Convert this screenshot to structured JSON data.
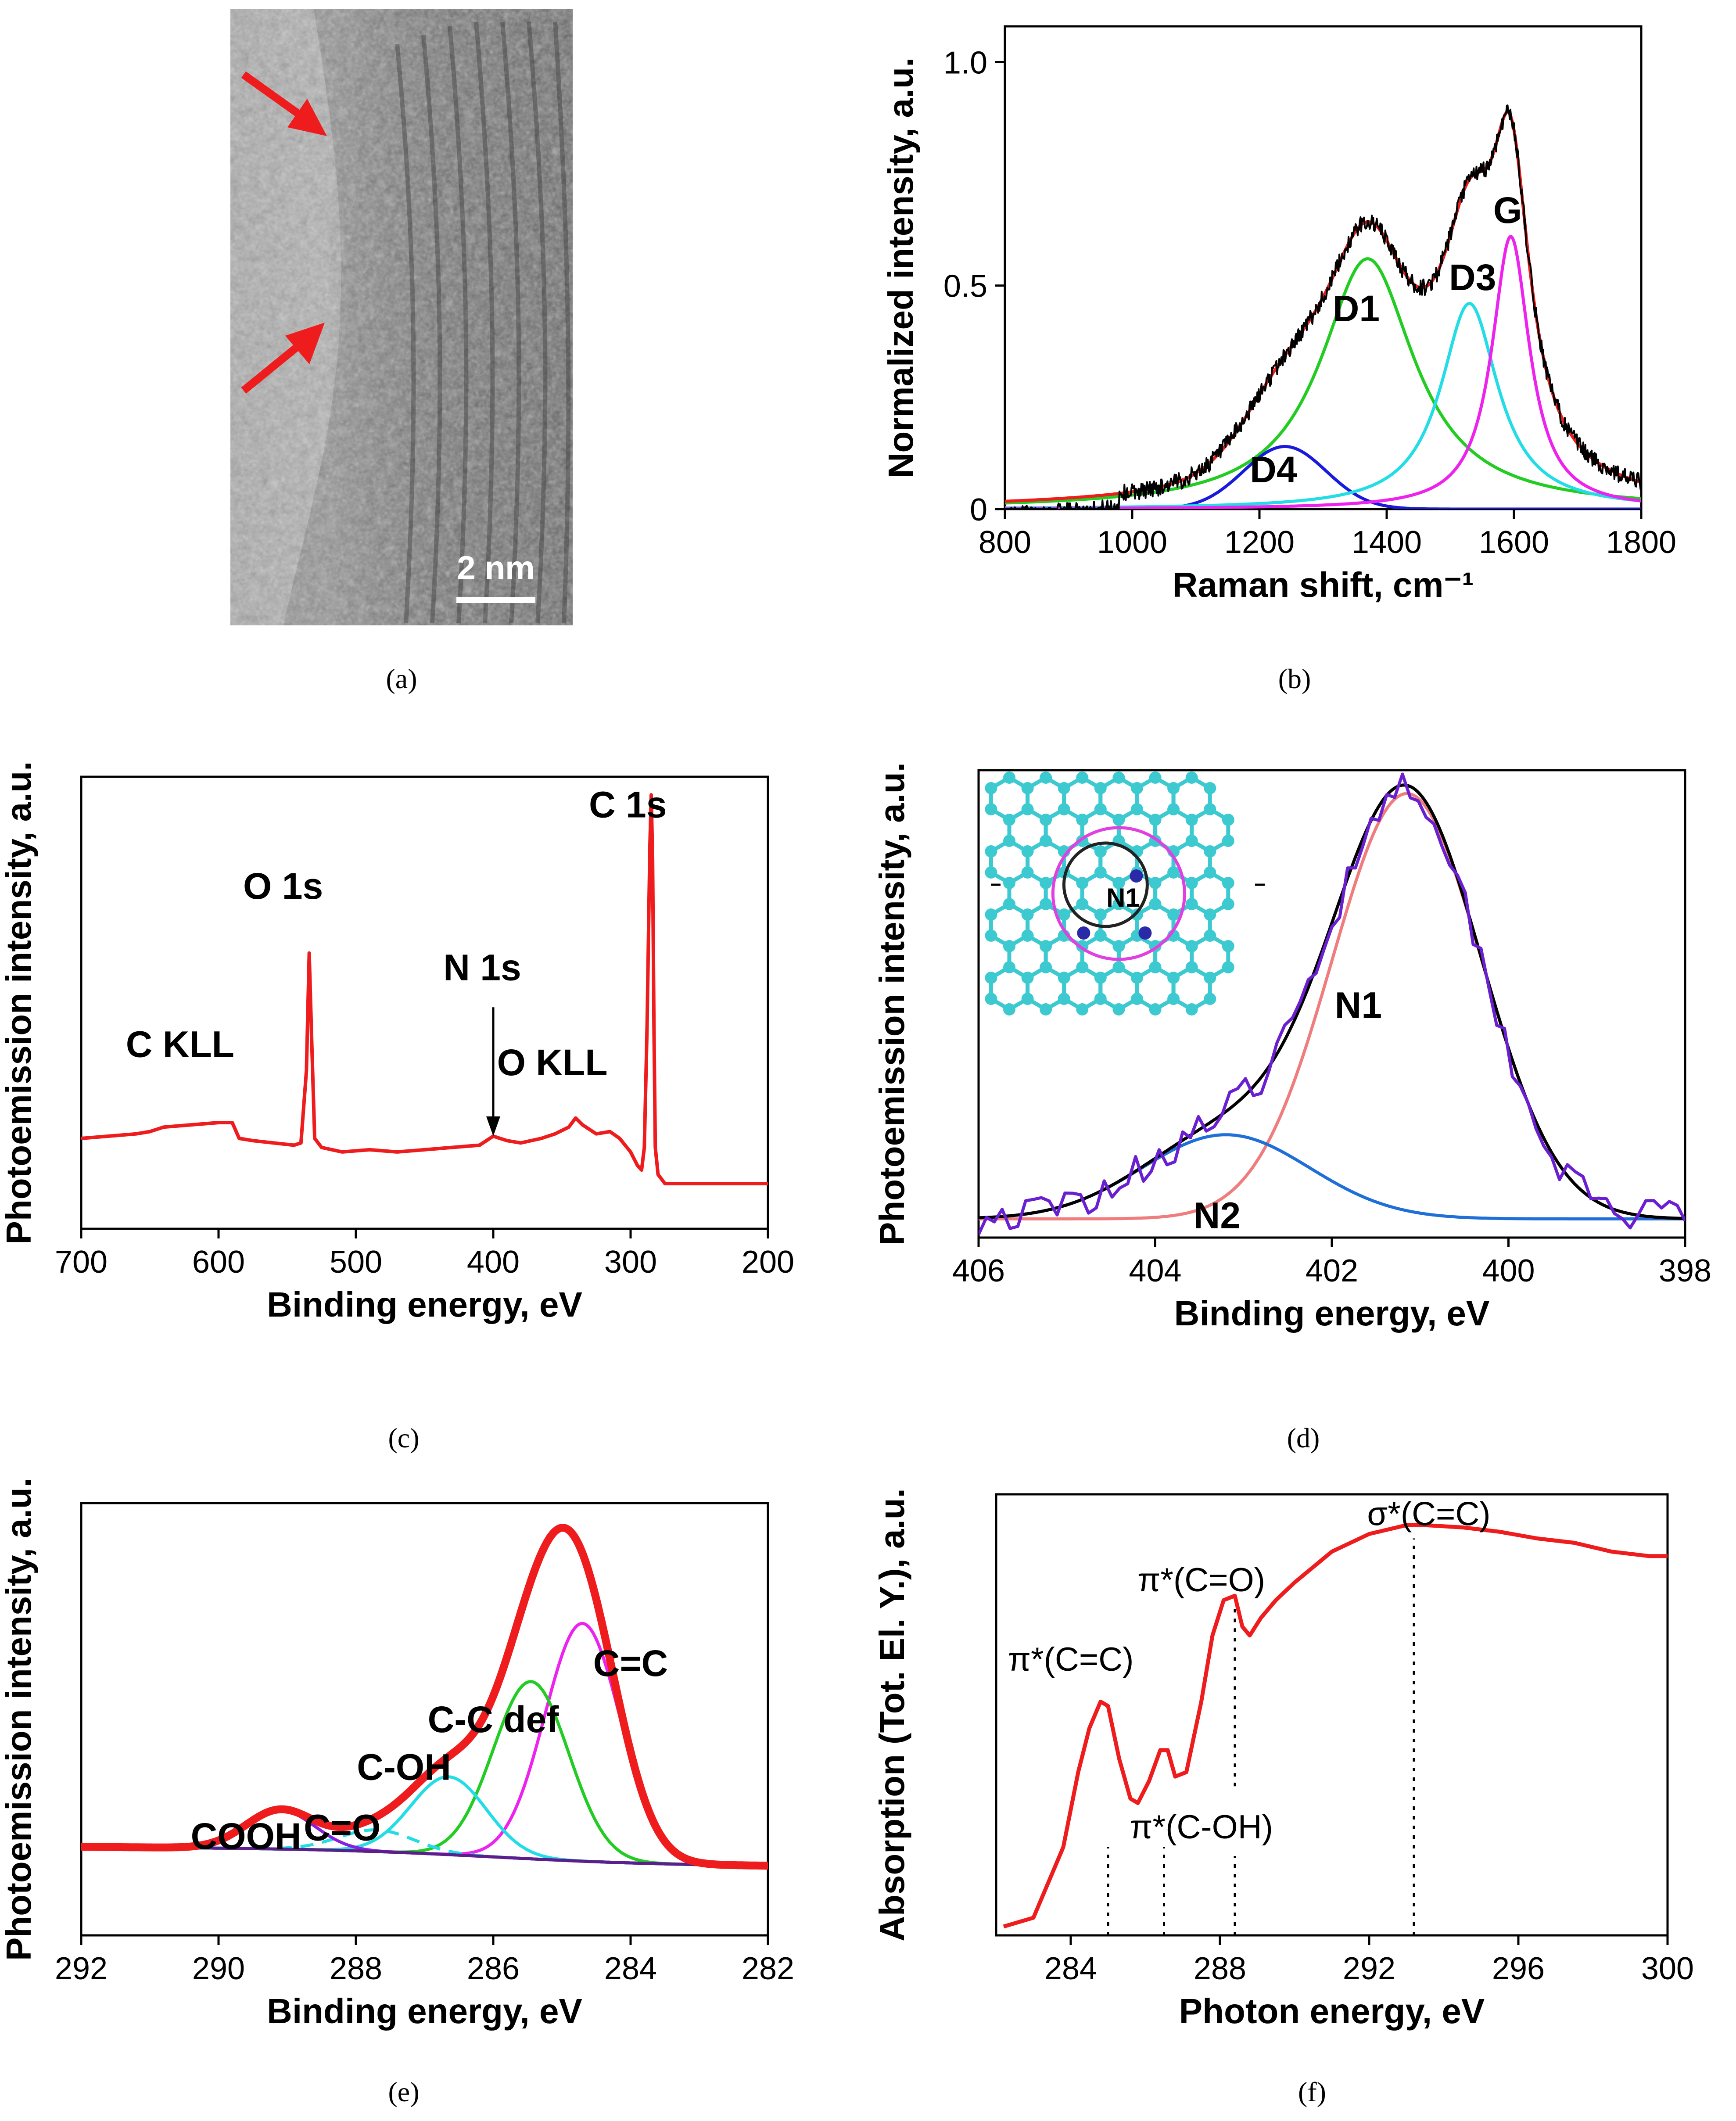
{
  "panels": {
    "a": {
      "caption": "(a)",
      "scale_bar_label": "2 nm",
      "colors": {
        "arrow": "#ee1c1c"
      }
    },
    "b": {
      "caption": "(b)"
    },
    "c": {
      "caption": "(c)"
    },
    "d": {
      "caption": "(d)",
      "inset_label": "N1"
    },
    "e": {
      "caption": "(e)"
    },
    "f": {
      "caption": "(f)"
    }
  },
  "chart_data": [
    {
      "id": "b",
      "type": "line",
      "xlabel": "Raman shift, cm⁻¹",
      "ylabel": "Normalized intensity, a.u.",
      "xlim": [
        800,
        1800
      ],
      "ylim": [
        0,
        1.08
      ],
      "xticks": [
        800,
        1000,
        1200,
        1400,
        1600,
        1800
      ],
      "yticks": [
        0,
        0.5,
        1.0
      ],
      "ytick_labels": [
        "0",
        "0.5",
        "1.0"
      ],
      "annotations": [
        {
          "text": "G",
          "x": 1590,
          "y": 0.64
        },
        {
          "text": "D3",
          "x": 1535,
          "y": 0.49
        },
        {
          "text": "D1",
          "x": 1352,
          "y": 0.42
        },
        {
          "text": "D4",
          "x": 1222,
          "y": 0.06
        }
      ],
      "series": [
        {
          "name": "D1",
          "shape": "lorentz",
          "center": 1370,
          "amplitude": 0.56,
          "hwhm": 90,
          "color": "#22cc22"
        },
        {
          "name": "D4",
          "shape": "gauss",
          "center": 1240,
          "amplitude": 0.14,
          "sigma": 65,
          "color": "#1a1adb"
        },
        {
          "name": "D3",
          "shape": "lorentz",
          "center": 1530,
          "amplitude": 0.46,
          "hwhm": 55,
          "color": "#22dde6"
        },
        {
          "name": "G",
          "shape": "lorentz",
          "center": 1595,
          "amplitude": 0.61,
          "hwhm": 36,
          "color": "#ee22ee"
        },
        {
          "name": "fit",
          "shape": "sum",
          "color": "#ee1c1c"
        },
        {
          "name": "data",
          "shape": "noisy-sum",
          "color": "#000000",
          "noise": 0.012
        }
      ]
    },
    {
      "id": "c",
      "type": "line",
      "xlabel": "Binding energy, eV",
      "ylabel": "Photoemission intensity, a.u.",
      "xlim": [
        700,
        200
      ],
      "ylim": [
        0,
        1
      ],
      "xticks": [
        700,
        600,
        500,
        400,
        300,
        200
      ],
      "annotations": [
        {
          "text": "C 1s",
          "x": 302,
          "y": 0.91
        },
        {
          "text": "O 1s",
          "x": 553,
          "y": 0.73
        },
        {
          "text": "N 1s",
          "x": 408,
          "y": 0.55
        },
        {
          "text": "C KLL",
          "x": 628,
          "y": 0.38
        },
        {
          "text": "O KLL",
          "x": 357,
          "y": 0.34
        }
      ],
      "arrow": {
        "label": "N 1s",
        "x": 400,
        "y_from": 0.49,
        "y_to": 0.205
      },
      "series": [
        {
          "name": "survey",
          "color": "#ee1c1c",
          "x": [
            700,
            680,
            660,
            650,
            640,
            620,
            600,
            590,
            585,
            575,
            560,
            545,
            540,
            536,
            534,
            532,
            530,
            525,
            510,
            490,
            470,
            450,
            430,
            410,
            400,
            390,
            380,
            365,
            355,
            345,
            340,
            335,
            325,
            315,
            308,
            300,
            295,
            292,
            290,
            288,
            286,
            285,
            284,
            283,
            282,
            280,
            275,
            260,
            240,
            220,
            200
          ],
          "y": [
            0.2,
            0.205,
            0.21,
            0.215,
            0.225,
            0.23,
            0.235,
            0.235,
            0.2,
            0.195,
            0.19,
            0.185,
            0.19,
            0.35,
            0.61,
            0.4,
            0.2,
            0.18,
            0.17,
            0.175,
            0.17,
            0.175,
            0.18,
            0.185,
            0.205,
            0.195,
            0.19,
            0.2,
            0.21,
            0.225,
            0.245,
            0.23,
            0.21,
            0.215,
            0.2,
            0.17,
            0.14,
            0.13,
            0.18,
            0.45,
            0.84,
            0.96,
            0.82,
            0.45,
            0.18,
            0.12,
            0.1,
            0.1,
            0.1,
            0.1,
            0.1
          ]
        }
      ]
    },
    {
      "id": "d",
      "type": "line",
      "xlabel": "Binding energy, eV",
      "ylabel": "Photoemission intensity, a.u.",
      "xlim": [
        406,
        398
      ],
      "ylim": [
        0,
        1
      ],
      "xticks": [
        406,
        404,
        402,
        400,
        398
      ],
      "annotations": [
        {
          "text": "N1",
          "x": 401.7,
          "y": 0.47
        },
        {
          "text": "N2",
          "x": 403.3,
          "y": 0.02
        }
      ],
      "series": [
        {
          "name": "N1",
          "shape": "gauss",
          "center": 401.15,
          "amplitude": 0.91,
          "sigma": 0.85,
          "color": "#f07d7d"
        },
        {
          "name": "N2",
          "shape": "gauss",
          "center": 403.2,
          "amplitude": 0.18,
          "sigma": 0.95,
          "color": "#1f6fd8"
        },
        {
          "name": "fit",
          "shape": "sum",
          "color": "#000000"
        },
        {
          "name": "data",
          "shape": "noisy-sum",
          "color": "#6a1fd0",
          "noise": 0.03
        }
      ]
    },
    {
      "id": "e",
      "type": "line",
      "xlabel": "Binding energy, eV",
      "ylabel": "Photoemission intensity, a.u.",
      "xlim": [
        292,
        282
      ],
      "ylim": [
        0,
        1
      ],
      "xticks": [
        292,
        290,
        288,
        286,
        284,
        282
      ],
      "annotations": [
        {
          "text": "C=C",
          "x": 284.0,
          "y": 0.6
        },
        {
          "text": "C-C def",
          "x": 286.0,
          "y": 0.47
        },
        {
          "text": "C-OH",
          "x": 287.3,
          "y": 0.36
        },
        {
          "text": "C=O",
          "x": 288.2,
          "y": 0.22
        },
        {
          "text": "COOH",
          "x": 289.6,
          "y": 0.2
        }
      ],
      "series": [
        {
          "name": "C=C",
          "shape": "gauss",
          "center": 284.7,
          "amplitude": 0.55,
          "sigma": 0.55,
          "color": "#ee22ee"
        },
        {
          "name": "C-C def",
          "shape": "gauss",
          "center": 285.45,
          "amplitude": 0.41,
          "sigma": 0.55,
          "color": "#22cc22"
        },
        {
          "name": "C-OH",
          "shape": "gauss",
          "center": 286.65,
          "amplitude": 0.18,
          "sigma": 0.55,
          "color": "#22dde6"
        },
        {
          "name": "C=O",
          "shape": "gauss",
          "center": 287.7,
          "amplitude": 0.05,
          "sigma": 0.55,
          "color": "#22dde6",
          "dashed": true
        },
        {
          "name": "COOH",
          "shape": "gauss",
          "center": 289.1,
          "amplitude": 0.09,
          "sigma": 0.5,
          "color": "#8a1fe0"
        },
        {
          "name": "background",
          "shape": "background",
          "color": "#5a1f8a"
        },
        {
          "name": "envelope",
          "shape": "sum",
          "color": "#ee1c1c"
        }
      ]
    },
    {
      "id": "f",
      "type": "line",
      "xlabel": "Photon energy, eV",
      "ylabel": "Absorption (Tot. El. Y.), a.u.",
      "xlim": [
        282,
        300
      ],
      "ylim": [
        0,
        1
      ],
      "xticks": [
        284,
        288,
        292,
        296,
        300
      ],
      "annotations": [
        {
          "text": "σ*(C=C)",
          "x": 293.6,
          "y": 0.93
        },
        {
          "text": "π*(C=O)",
          "x": 287.5,
          "y": 0.78
        },
        {
          "text": "π*(C=C)",
          "x": 284.0,
          "y": 0.6
        },
        {
          "text": "π*(C-OH)",
          "x": 287.5,
          "y": 0.22
        }
      ],
      "markers": [
        285.0,
        286.5,
        288.4,
        293.2
      ],
      "series": [
        {
          "name": "NEXAFS",
          "color": "#ee1c1c",
          "x": [
            282.2,
            283.0,
            283.8,
            284.2,
            284.5,
            284.8,
            285.0,
            285.3,
            285.6,
            285.8,
            286.1,
            286.4,
            286.6,
            286.8,
            287.1,
            287.5,
            287.8,
            288.1,
            288.4,
            288.6,
            288.8,
            289.1,
            289.5,
            290.0,
            291.0,
            292.0,
            293.0,
            293.5,
            294.5,
            295.5,
            296.5,
            297.5,
            298.5,
            299.5,
            300.0
          ],
          "y": [
            0.02,
            0.04,
            0.2,
            0.37,
            0.47,
            0.53,
            0.52,
            0.4,
            0.31,
            0.3,
            0.35,
            0.42,
            0.42,
            0.36,
            0.37,
            0.53,
            0.68,
            0.76,
            0.77,
            0.7,
            0.68,
            0.72,
            0.76,
            0.8,
            0.87,
            0.91,
            0.93,
            0.93,
            0.925,
            0.915,
            0.9,
            0.89,
            0.87,
            0.86,
            0.86
          ]
        }
      ]
    }
  ]
}
